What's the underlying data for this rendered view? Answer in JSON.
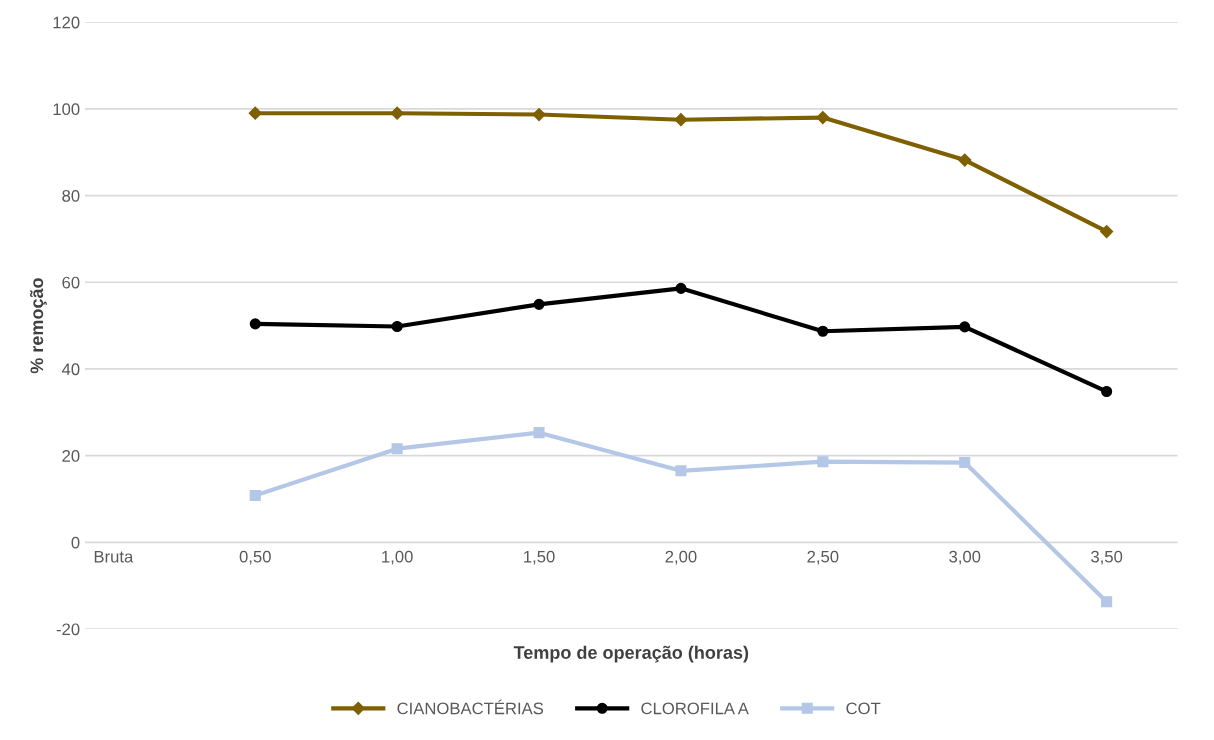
{
  "chart_data": {
    "type": "line",
    "xlabel": "Tempo de operação (horas)",
    "ylabel": "% remoção",
    "categories": [
      "Bruta",
      "0,50",
      "1,00",
      "1,50",
      "2,00",
      "2,50",
      "3,00",
      "3,50"
    ],
    "series": [
      {
        "name": "CIANOBACTÉRIAS",
        "color": "#7f6000",
        "marker": "diamond",
        "values": [
          null,
          99,
          99,
          98.7,
          97.5,
          98,
          88.2,
          71.7
        ]
      },
      {
        "name": "CLOROFILA A",
        "color": "#000000",
        "marker": "circle",
        "values": [
          null,
          50.4,
          49.8,
          54.9,
          58.6,
          48.7,
          49.7,
          34.8
        ]
      },
      {
        "name": "COT",
        "color": "#b4c7e7",
        "marker": "square",
        "values": [
          null,
          10.8,
          21.6,
          25.3,
          16.5,
          18.6,
          18.4,
          -13.7
        ]
      }
    ],
    "ylim": [
      -20,
      120
    ],
    "yticks": [
      -20,
      0,
      20,
      40,
      60,
      80,
      100,
      120
    ],
    "grid": "y",
    "legend": "bottom",
    "line_style": "solid"
  }
}
